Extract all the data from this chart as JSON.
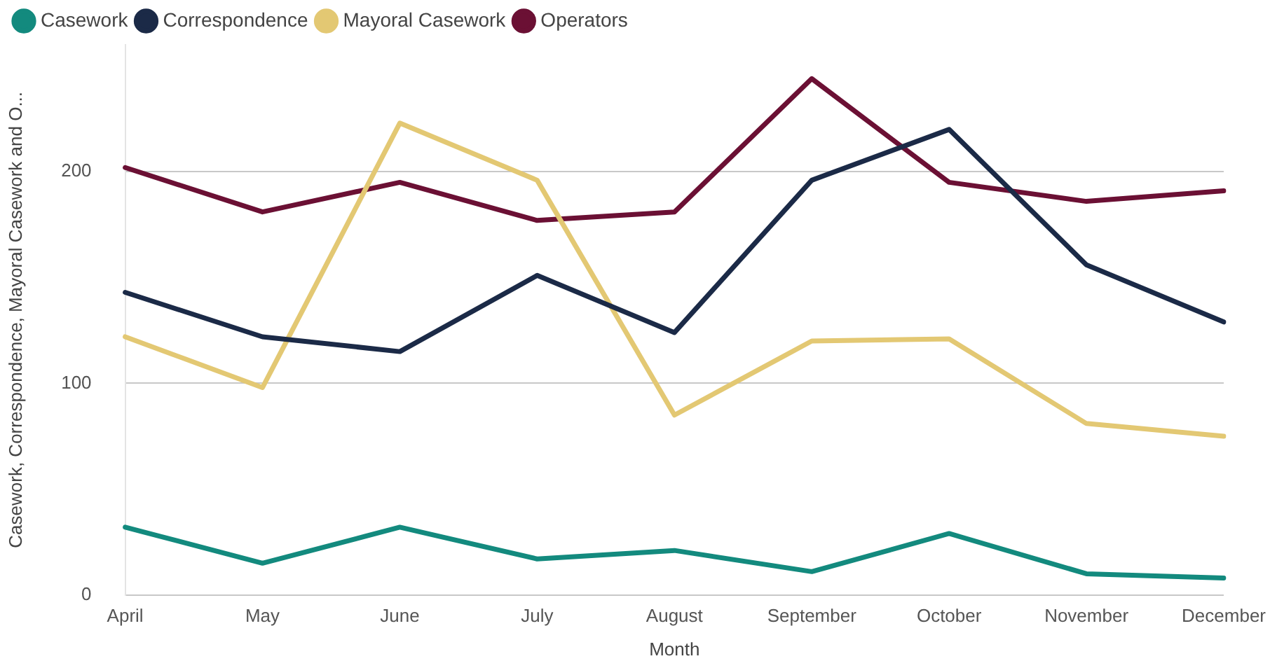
{
  "chart_data": {
    "type": "line",
    "xlabel": "Month",
    "ylabel": "Casework, Correspondence, Mayoral Casework and O...",
    "categories": [
      "April",
      "May",
      "June",
      "July",
      "August",
      "September",
      "October",
      "November",
      "December"
    ],
    "series": [
      {
        "name": "Casework",
        "color": "#138a7e",
        "values": [
          32,
          15,
          32,
          17,
          21,
          11,
          29,
          10,
          8
        ]
      },
      {
        "name": "Correspondence",
        "color": "#1b2a47",
        "values": [
          143,
          122,
          115,
          151,
          124,
          196,
          220,
          156,
          129
        ]
      },
      {
        "name": "Mayoral Casework",
        "color": "#e3c873",
        "values": [
          122,
          98,
          223,
          196,
          85,
          120,
          121,
          81,
          75
        ]
      },
      {
        "name": "Operators",
        "color": "#6b1034",
        "values": [
          202,
          181,
          195,
          177,
          181,
          244,
          195,
          186,
          191
        ]
      }
    ],
    "ylim": [
      0,
      260
    ],
    "yticks": [
      0,
      100,
      200
    ],
    "grid": "y",
    "legend": "top left",
    "marker": "none",
    "line_style": "solid"
  }
}
